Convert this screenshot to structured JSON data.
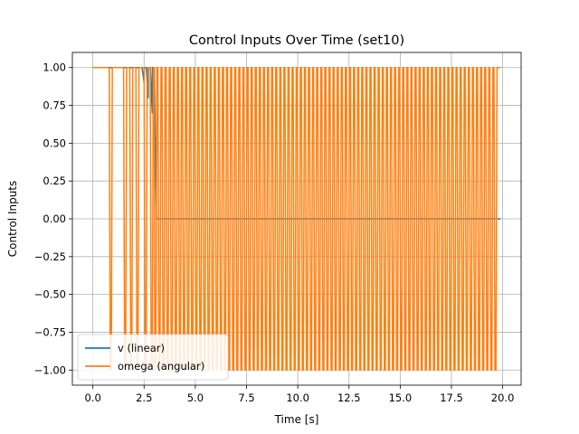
{
  "chart_data": {
    "type": "line",
    "title": "Control Inputs Over Time (set10)",
    "xlabel": "Time [s]",
    "ylabel": "Control Inputs",
    "xlim": [
      -1.0,
      20.9
    ],
    "ylim": [
      -1.1,
      1.1
    ],
    "grid": true,
    "legend_position": "lower-left",
    "x_ticks": [
      0.0,
      2.5,
      5.0,
      7.5,
      10.0,
      12.5,
      15.0,
      17.5,
      20.0
    ],
    "x_tick_labels": [
      "0.0",
      "2.5",
      "5.0",
      "7.5",
      "10.0",
      "12.5",
      "15.0",
      "17.5",
      "20.0"
    ],
    "y_ticks": [
      -1.0,
      -0.75,
      -0.5,
      -0.25,
      0.0,
      0.25,
      0.5,
      0.75,
      1.0
    ],
    "y_tick_labels": [
      "−1.00",
      "−0.75",
      "−0.50",
      "−0.25",
      "0.00",
      "0.25",
      "0.50",
      "0.75",
      "1.00"
    ],
    "series": [
      {
        "name": "v (linear)",
        "color": "#1f77b4",
        "x": [
          0.0,
          2.4,
          2.5,
          2.5,
          2.6,
          2.7,
          2.7,
          2.8,
          2.9,
          2.9,
          3.0,
          3.1,
          19.9
        ],
        "values": [
          1.0,
          1.0,
          0.9,
          1.0,
          1.0,
          0.8,
          1.0,
          1.0,
          0.7,
          1.0,
          1.0,
          0.0,
          0.0
        ]
      },
      {
        "name": "omega (angular)",
        "color": "#ff7f0e",
        "x": [
          0.0,
          0.8,
          0.85,
          0.9,
          0.95,
          1.5,
          1.55,
          1.6,
          1.65,
          1.8,
          1.85,
          1.9,
          1.95,
          2.1,
          2.15,
          2.2,
          2.25,
          2.5,
          2.55,
          2.6,
          2.65,
          2.8,
          2.85,
          2.9,
          2.95,
          3.0
        ],
        "values": [
          1.0,
          1.0,
          -1.0,
          -1.0,
          1.0,
          1.0,
          -1.0,
          -1.0,
          1.0,
          1.0,
          -1.0,
          -1.0,
          1.0,
          1.0,
          -1.0,
          -1.0,
          1.0,
          1.0,
          -1.0,
          -1.0,
          1.0,
          1.0,
          -1.0,
          -1.0,
          1.0,
          1.0
        ],
        "oscillation": {
          "start": 3.0,
          "end": 19.9,
          "period": 0.2,
          "high": 1.0,
          "low": -1.0
        }
      }
    ]
  }
}
